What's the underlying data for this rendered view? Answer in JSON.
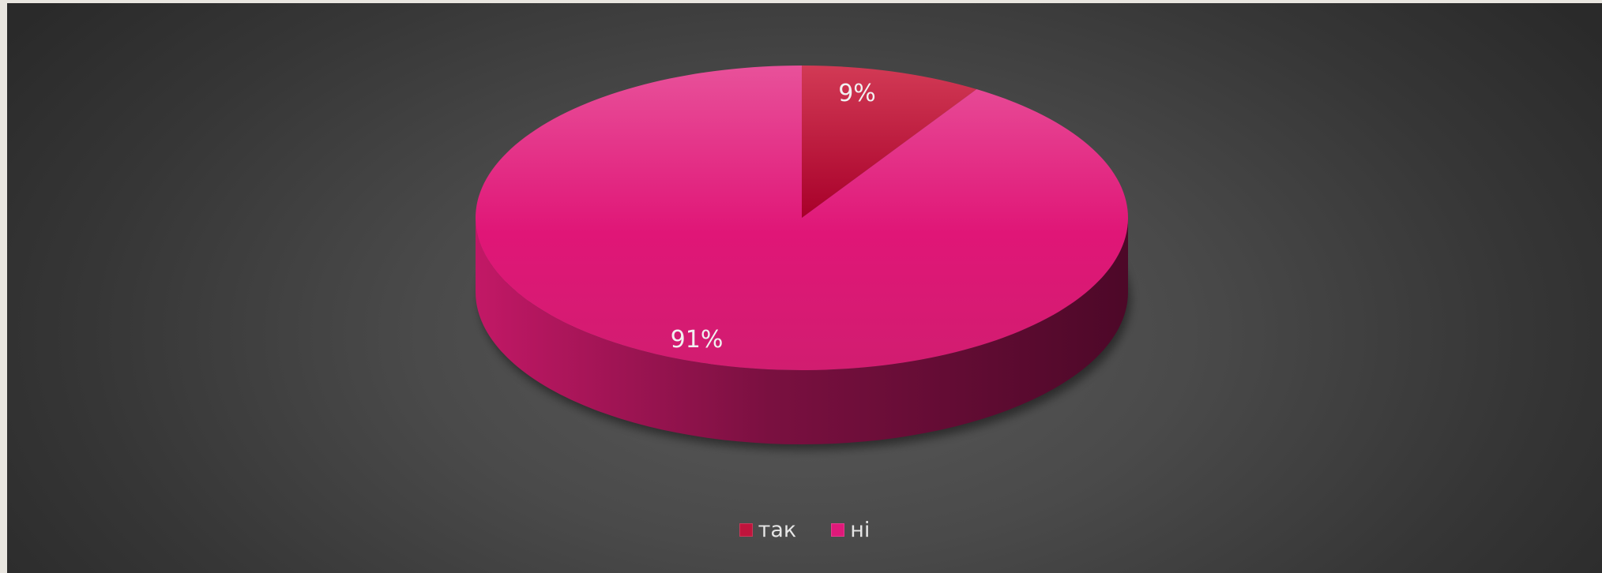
{
  "chart_data": {
    "type": "pie",
    "style": "3d",
    "slices": [
      {
        "label": "так",
        "value": 9,
        "data_label": "9%",
        "color": "#c0143c"
      },
      {
        "label": "ні",
        "value": 91,
        "data_label": "91%",
        "color": "#e0197a"
      }
    ],
    "legend_position": "bottom"
  }
}
